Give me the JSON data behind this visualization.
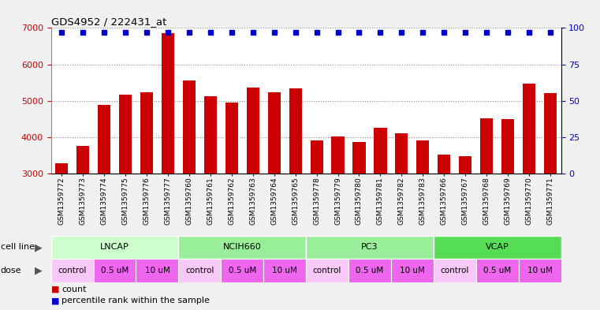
{
  "title": "GDS4952 / 222431_at",
  "samples": [
    "GSM1359772",
    "GSM1359773",
    "GSM1359774",
    "GSM1359775",
    "GSM1359776",
    "GSM1359777",
    "GSM1359760",
    "GSM1359761",
    "GSM1359762",
    "GSM1359763",
    "GSM1359764",
    "GSM1359765",
    "GSM1359778",
    "GSM1359779",
    "GSM1359780",
    "GSM1359781",
    "GSM1359782",
    "GSM1359783",
    "GSM1359766",
    "GSM1359767",
    "GSM1359768",
    "GSM1359769",
    "GSM1359770",
    "GSM1359771"
  ],
  "counts": [
    3280,
    3760,
    4890,
    5170,
    5240,
    6850,
    5560,
    5120,
    4960,
    5360,
    5240,
    5340,
    3920,
    4020,
    3870,
    4250,
    4110,
    3910,
    3520,
    3470,
    4510,
    4490,
    5480,
    5220
  ],
  "bar_color": "#cc0000",
  "dot_color": "#0000cc",
  "ylim_left": [
    3000,
    7000
  ],
  "ylim_right": [
    0,
    100
  ],
  "yticks_left": [
    3000,
    4000,
    5000,
    6000,
    7000
  ],
  "yticks_right": [
    0,
    25,
    50,
    75,
    100
  ],
  "cell_lines": [
    {
      "name": "LNCAP",
      "start": 0,
      "end": 6,
      "color": "#ccffcc"
    },
    {
      "name": "NCIH660",
      "start": 6,
      "end": 12,
      "color": "#99ee99"
    },
    {
      "name": "PC3",
      "start": 12,
      "end": 18,
      "color": "#99ee99"
    },
    {
      "name": "VCAP",
      "start": 18,
      "end": 24,
      "color": "#55dd55"
    }
  ],
  "dose_groups": [
    {
      "start": 0,
      "end": 2,
      "label": "control",
      "color": "#f8c8f8"
    },
    {
      "start": 2,
      "end": 4,
      "label": "0.5 uM",
      "color": "#ee66ee"
    },
    {
      "start": 4,
      "end": 6,
      "label": "10 uM",
      "color": "#ee66ee"
    },
    {
      "start": 6,
      "end": 8,
      "label": "control",
      "color": "#f8c8f8"
    },
    {
      "start": 8,
      "end": 10,
      "label": "0.5 uM",
      "color": "#ee66ee"
    },
    {
      "start": 10,
      "end": 12,
      "label": "10 uM",
      "color": "#ee66ee"
    },
    {
      "start": 12,
      "end": 14,
      "label": "control",
      "color": "#f8c8f8"
    },
    {
      "start": 14,
      "end": 16,
      "label": "0.5 uM",
      "color": "#ee66ee"
    },
    {
      "start": 16,
      "end": 18,
      "label": "10 uM",
      "color": "#ee66ee"
    },
    {
      "start": 18,
      "end": 20,
      "label": "control",
      "color": "#f8c8f8"
    },
    {
      "start": 20,
      "end": 22,
      "label": "0.5 uM",
      "color": "#ee66ee"
    },
    {
      "start": 22,
      "end": 24,
      "label": "10 uM",
      "color": "#ee66ee"
    }
  ],
  "bg_color": "#f0f0f0"
}
